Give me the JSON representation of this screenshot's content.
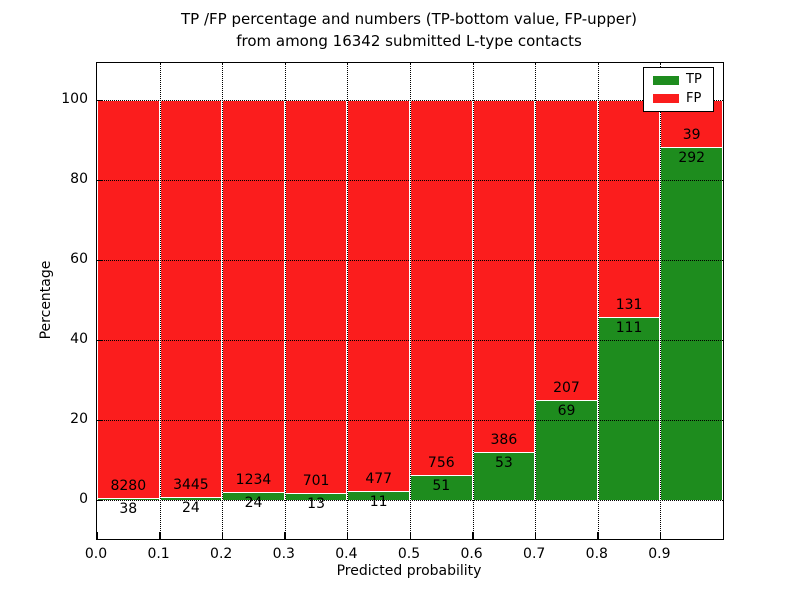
{
  "title": {
    "line1": "TP /FP percentage and numbers (TP-bottom value, FP-upper)",
    "line2": "from among 16342 submitted L-type contacts"
  },
  "axes": {
    "xlabel": "Predicted probability",
    "ylabel": "Percentage",
    "yticks": [
      0,
      20,
      40,
      60,
      80,
      100
    ],
    "xticks": [
      "0.0",
      "0.1",
      "0.2",
      "0.3",
      "0.4",
      "0.5",
      "0.6",
      "0.7",
      "0.8",
      "0.9"
    ],
    "ylim": [
      0,
      100
    ]
  },
  "legend": {
    "position": "upper right",
    "items": [
      {
        "label": "TP",
        "color": "#1e8c1e"
      },
      {
        "label": "FP",
        "color": "#fb1d1d"
      }
    ]
  },
  "colors": {
    "tp": "#1e8c1e",
    "fp": "#fb1d1d",
    "bar_edge": "#ffffff",
    "grid": "#000000",
    "background": "#ffffff",
    "text": "#000000"
  },
  "chart_data": {
    "type": "bar",
    "stacked": true,
    "normalized": "percent",
    "title": "TP /FP percentage and numbers (TP-bottom value, FP-upper) from among 16342 submitted L-type contacts",
    "total_contacts": 16342,
    "xlabel": "Predicted probability",
    "ylabel": "Percentage",
    "grid": true,
    "legend_position": "upper right",
    "ylim": [
      0,
      100
    ],
    "bin_edges": [
      0.0,
      0.1,
      0.2,
      0.3,
      0.4,
      0.5,
      0.6,
      0.7,
      0.8,
      0.9,
      1.0
    ],
    "categories": [
      "0.0-0.1",
      "0.1-0.2",
      "0.2-0.3",
      "0.3-0.4",
      "0.4-0.5",
      "0.5-0.6",
      "0.6-0.7",
      "0.7-0.8",
      "0.8-0.9",
      "0.9-1.0"
    ],
    "series": [
      {
        "name": "TP",
        "color": "#1e8c1e",
        "counts": [
          38,
          24,
          24,
          13,
          11,
          51,
          53,
          69,
          111,
          292
        ]
      },
      {
        "name": "FP",
        "color": "#fb1d1d",
        "counts": [
          8280,
          3445,
          1234,
          701,
          477,
          756,
          386,
          207,
          131,
          39
        ]
      }
    ],
    "tp_percent": [
      0.46,
      0.69,
      1.91,
      1.82,
      2.25,
      6.32,
      12.07,
      25.0,
      45.87,
      88.22
    ]
  }
}
